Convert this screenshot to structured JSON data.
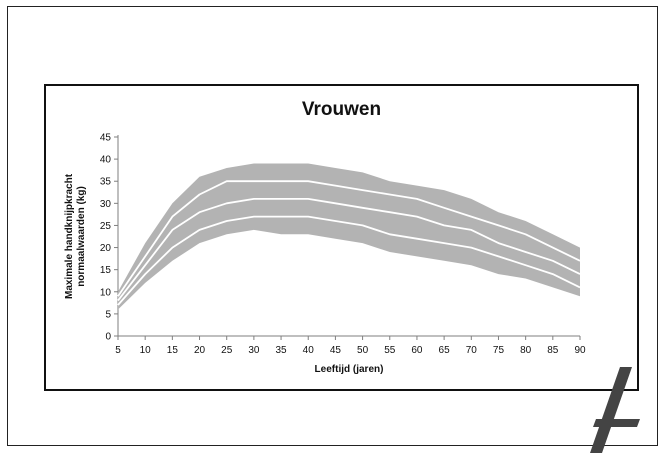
{
  "chart_data": {
    "type": "area",
    "title": "Vrouwen",
    "xlabel": "Leeftijd (jaren)",
    "ylabel": [
      "Maximale handknijpkracht",
      "normaalwaarden (kg)"
    ],
    "xlim": [
      5,
      90
    ],
    "ylim": [
      0,
      45
    ],
    "x_ticks": [
      5,
      10,
      15,
      20,
      25,
      30,
      35,
      40,
      45,
      50,
      55,
      60,
      65,
      70,
      75,
      80,
      85,
      90
    ],
    "y_ticks": [
      0,
      5,
      10,
      15,
      20,
      25,
      30,
      35,
      40,
      45
    ],
    "grid": false,
    "legend": "none",
    "x": [
      5,
      10,
      15,
      20,
      25,
      30,
      35,
      40,
      45,
      50,
      55,
      60,
      65,
      70,
      75,
      80,
      85,
      90
    ],
    "band": {
      "color": "#b3b3b3",
      "upper": [
        10,
        21,
        30,
        36,
        38,
        39,
        39,
        39,
        38,
        37,
        35,
        34,
        33,
        31,
        28,
        26,
        23,
        20
      ],
      "lower": [
        6,
        12,
        17,
        21,
        23,
        24,
        23,
        23,
        22,
        21,
        19,
        18,
        17,
        16,
        14,
        13,
        11,
        9
      ]
    },
    "series": [
      {
        "color": "#ffffff",
        "values": [
          9,
          18,
          27,
          32,
          35,
          35,
          35,
          35,
          34,
          33,
          32,
          31,
          29,
          27,
          25,
          23,
          20,
          17
        ]
      },
      {
        "color": "#ffffff",
        "values": [
          8,
          16,
          24,
          28,
          30,
          31,
          31,
          31,
          30,
          29,
          28,
          27,
          25,
          24,
          21,
          19,
          17,
          14
        ]
      },
      {
        "color": "#ffffff",
        "values": [
          7,
          14,
          20,
          24,
          26,
          27,
          27,
          27,
          26,
          25,
          23,
          22,
          21,
          20,
          18,
          16,
          14,
          11
        ]
      }
    ]
  }
}
